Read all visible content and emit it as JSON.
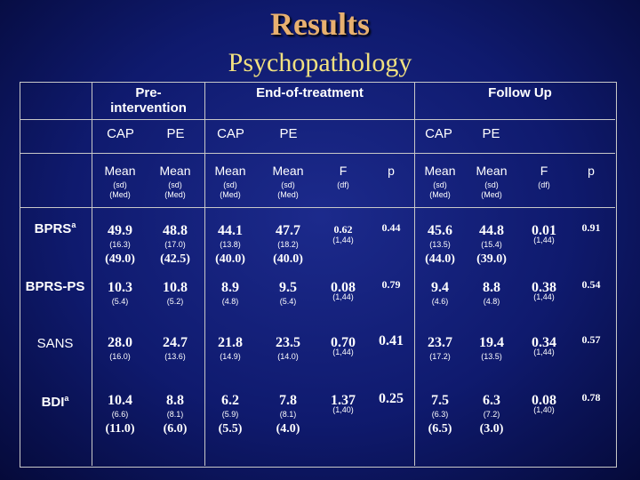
{
  "title": "Results",
  "subtitle": "Psychopathology",
  "groups": {
    "pre": "Pre-",
    "pre2": "intervention",
    "end": "End-of-treatment",
    "follow": "Follow Up"
  },
  "cols": {
    "cap1": "CAP",
    "pe1": "PE",
    "cap2": "CAP",
    "pe2": "PE",
    "cap3": "CAP",
    "pe3": "PE"
  },
  "sub": {
    "mean": "Mean",
    "sd": "(sd)",
    "med": "(Med)",
    "F": "F",
    "df": "(df)",
    "p": "p"
  },
  "rows": [
    {
      "label": "BPRS",
      "sup": "a",
      "v": [
        "49.9",
        "48.8",
        "44.1",
        "47.7",
        "0.62",
        "0.44",
        "45.6",
        "44.8",
        "0.01",
        "0.91"
      ],
      "sd": [
        "(16.3)",
        "(17.0)",
        "(13.8)",
        "(18.2)",
        "(1,44)",
        "",
        "(13.5)",
        "(15.4)",
        "(1,44)",
        ""
      ],
      "med": [
        "(49.0)",
        "(42.5)",
        "(40.0)",
        "(40.0)",
        "",
        "",
        "(44.0)",
        "(39.0)",
        "",
        ""
      ]
    },
    {
      "label": "BPRS-PS",
      "sup": "",
      "v": [
        "10.3",
        "10.8",
        "8.9",
        "9.5",
        "0.08",
        "0.79",
        "9.4",
        "8.8",
        "0.38",
        "0.54"
      ],
      "sd": [
        "(5.4)",
        "(5.2)",
        "(4.8)",
        "(5.4)",
        "(1,44)",
        "",
        "(4.6)",
        "(4.8)",
        "(1,44)",
        ""
      ],
      "med": [
        "",
        "",
        "",
        "",
        "",
        "",
        "",
        "",
        "",
        ""
      ]
    },
    {
      "label": "SANS",
      "sup": "",
      "v": [
        "28.0",
        "24.7",
        "21.8",
        "23.5",
        "0.70",
        "0.41",
        "23.7",
        "19.4",
        "0.34",
        "0.57"
      ],
      "sd": [
        "(16.0)",
        "(13.6)",
        "(14.9)",
        "(14.0)",
        "(1,44)",
        "",
        "(17.2)",
        "(13.5)",
        "(1,44)",
        ""
      ],
      "med": [
        "",
        "",
        "",
        "",
        "",
        "",
        "",
        "",
        "",
        ""
      ]
    },
    {
      "label": "BDI",
      "sup": "a",
      "v": [
        "10.4",
        "8.8",
        "6.2",
        "7.8",
        "1.37",
        "0.25",
        "7.5",
        "6.3",
        "0.08",
        "0.78"
      ],
      "sd": [
        "(6.6)",
        "(8.1)",
        "(5.9)",
        "(8.1)",
        "(1,40)",
        "",
        "(6.3)",
        "(7.2)",
        "(1,40)",
        ""
      ],
      "med": [
        "(11.0)",
        "(6.0)",
        "(5.5)",
        "(4.0)",
        "",
        "",
        "(6.5)",
        "(3.0)",
        "",
        ""
      ]
    }
  ]
}
